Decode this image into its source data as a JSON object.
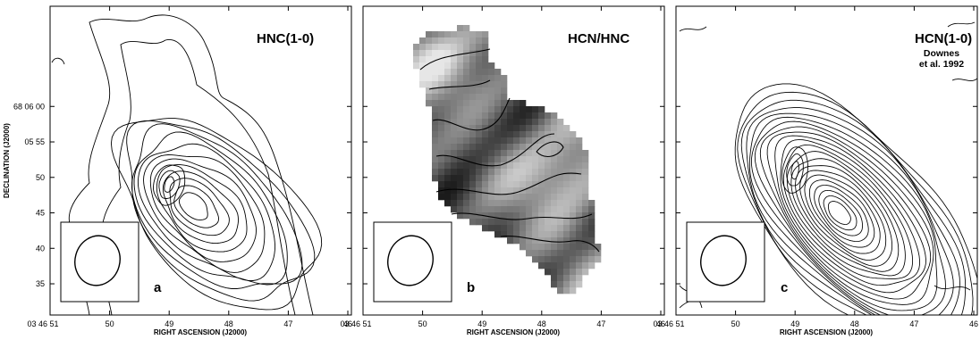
{
  "chart_data": [
    {
      "type": "contour",
      "title": "HNC(1-0)",
      "panel_label": "a",
      "xlabel": "RIGHT ASCENSION (J2000)",
      "ylabel": "DECLINATION (J2000)",
      "xticks": [
        "03 46 51",
        "50",
        "49",
        "48",
        "47",
        "46"
      ],
      "yticks": [
        "68 06 00",
        "05 55",
        "50",
        "45",
        "40",
        "35"
      ],
      "peaks": [
        {
          "ra_s": 48.2,
          "dec_s": 45.0,
          "levels": 12
        },
        {
          "ra_s": 49.0,
          "dec_s": 49.0,
          "levels": 9
        }
      ],
      "beam": {
        "shape": "ellipse",
        "position": "bottom-left box"
      }
    },
    {
      "type": "heatmap",
      "title": "HCN/HNC",
      "panel_label": "b",
      "xlabel": "RIGHT ASCENSION (J2000)",
      "xticks": [
        "03 46 51",
        "50",
        "49",
        "48",
        "47",
        "46"
      ],
      "colormap": "greyscale",
      "beam": {
        "shape": "ellipse",
        "position": "bottom-left box"
      }
    },
    {
      "type": "contour",
      "title": "HCN(1-0)",
      "subtitle": [
        "Downes",
        "et al. 1992"
      ],
      "panel_label": "c",
      "xlabel": "RIGHT ASCENSION (J2000)",
      "xticks": [
        "03 46 51",
        "50",
        "49",
        "48",
        "47",
        "46"
      ],
      "peaks": [
        {
          "ra_s": 48.0,
          "dec_s": 44.5,
          "levels": 22
        },
        {
          "ra_s": 49.0,
          "dec_s": 51.0,
          "levels": 14
        }
      ],
      "beam": {
        "shape": "ellipse",
        "position": "bottom-left box"
      }
    }
  ]
}
